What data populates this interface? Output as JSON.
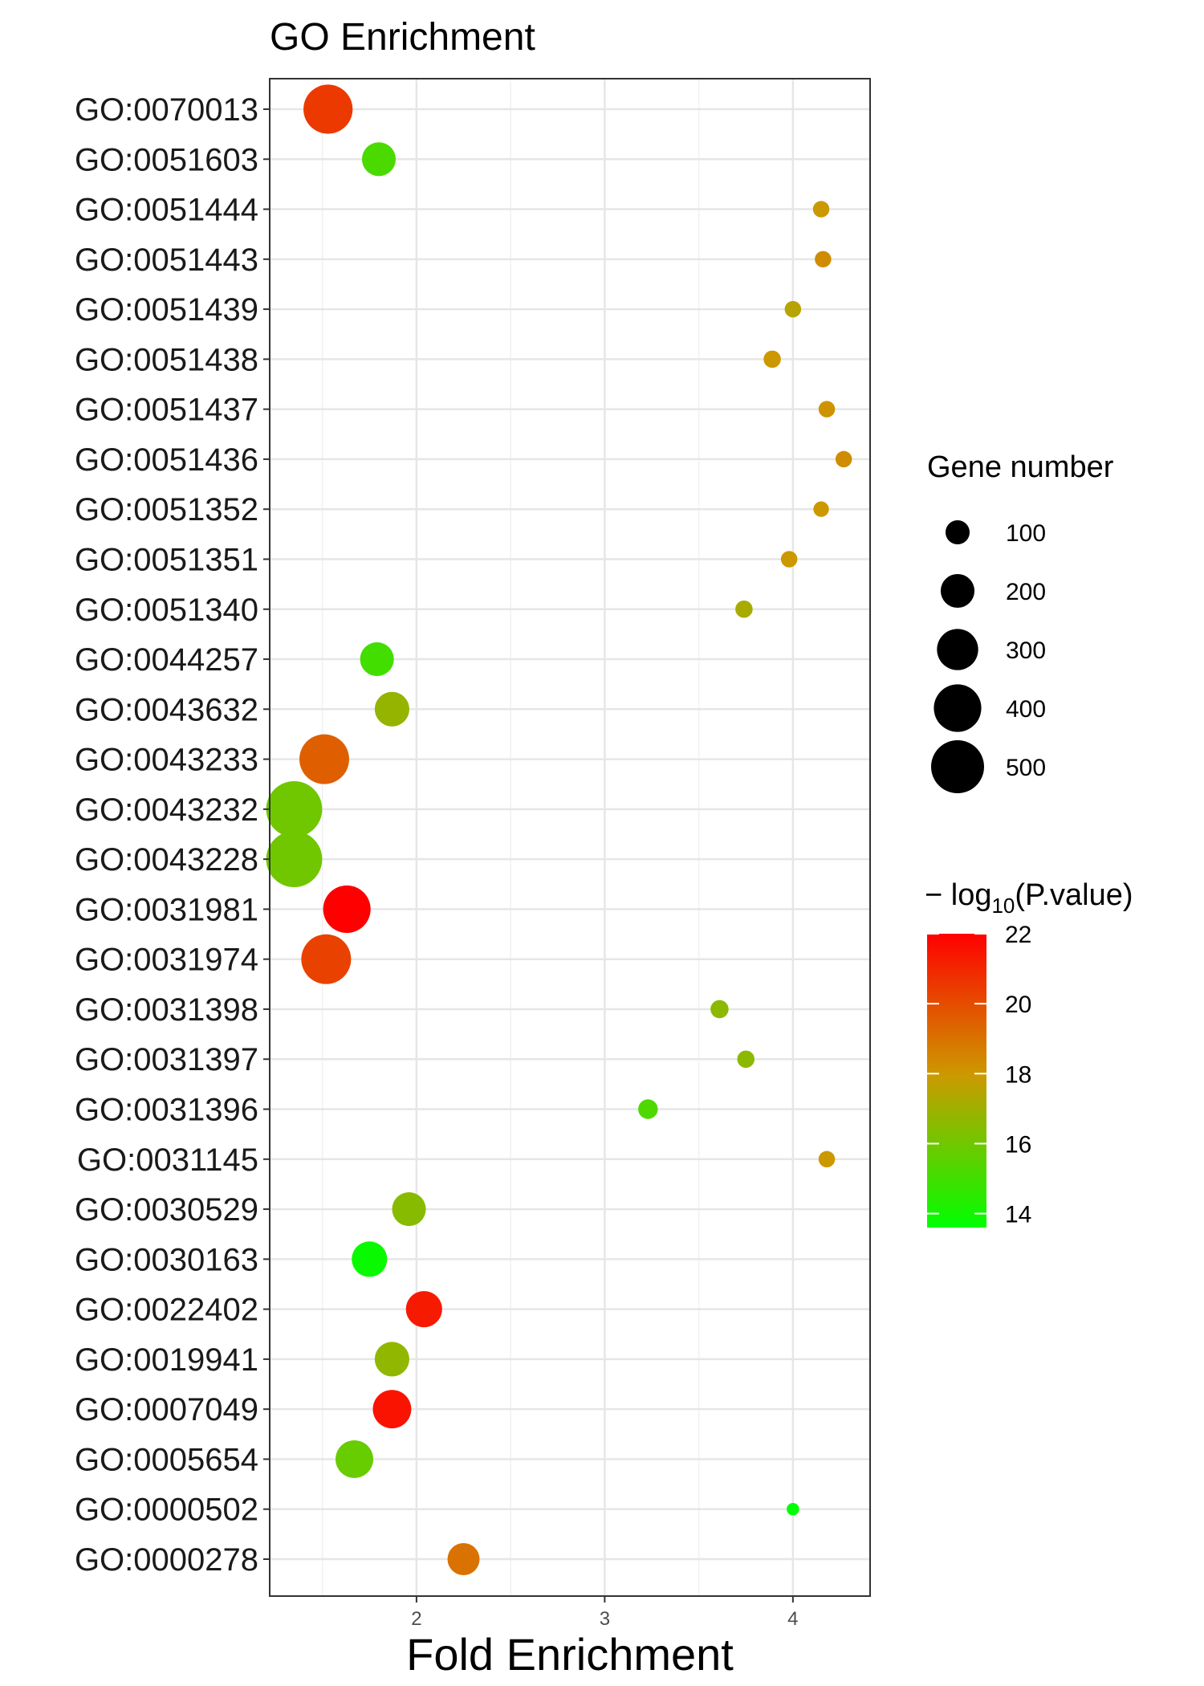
{
  "chart_data": {
    "type": "scatter",
    "title": "GO Enrichment",
    "xlabel": "Fold Enrichment",
    "ylabel": "",
    "xlim": [
      1.22,
      4.41
    ],
    "xticks": [
      2,
      3,
      4
    ],
    "grid": true,
    "categories": [
      "GO:0070013",
      "GO:0051603",
      "GO:0051444",
      "GO:0051443",
      "GO:0051439",
      "GO:0051438",
      "GO:0051437",
      "GO:0051436",
      "GO:0051352",
      "GO:0051351",
      "GO:0051340",
      "GO:0044257",
      "GO:0043632",
      "GO:0043233",
      "GO:0043232",
      "GO:0043228",
      "GO:0031981",
      "GO:0031974",
      "GO:0031398",
      "GO:0031397",
      "GO:0031396",
      "GO:0031145",
      "GO:0030529",
      "GO:0030163",
      "GO:0022402",
      "GO:0019941",
      "GO:0007049",
      "GO:0005654",
      "GO:0000502",
      "GO:0000278"
    ],
    "points": [
      {
        "term": "GO:0070013",
        "fold_enrichment": 1.53,
        "gene_number": 430,
        "neg_log10_p": 20.5
      },
      {
        "term": "GO:0051603",
        "fold_enrichment": 1.8,
        "gene_number": 200,
        "neg_log10_p": 15.2
      },
      {
        "term": "GO:0051444",
        "fold_enrichment": 4.15,
        "gene_number": 45,
        "neg_log10_p": 18.0
      },
      {
        "term": "GO:0051443",
        "fold_enrichment": 4.16,
        "gene_number": 45,
        "neg_log10_p": 18.3
      },
      {
        "term": "GO:0051439",
        "fold_enrichment": 4.0,
        "gene_number": 45,
        "neg_log10_p": 17.5
      },
      {
        "term": "GO:0051438",
        "fold_enrichment": 3.89,
        "gene_number": 50,
        "neg_log10_p": 18.0
      },
      {
        "term": "GO:0051437",
        "fold_enrichment": 4.18,
        "gene_number": 45,
        "neg_log10_p": 18.1
      },
      {
        "term": "GO:0051436",
        "fold_enrichment": 4.27,
        "gene_number": 45,
        "neg_log10_p": 18.3
      },
      {
        "term": "GO:0051352",
        "fold_enrichment": 4.15,
        "gene_number": 40,
        "neg_log10_p": 18.0
      },
      {
        "term": "GO:0051351",
        "fold_enrichment": 3.98,
        "gene_number": 45,
        "neg_log10_p": 18.0
      },
      {
        "term": "GO:0051340",
        "fold_enrichment": 3.74,
        "gene_number": 50,
        "neg_log10_p": 17.2
      },
      {
        "term": "GO:0044257",
        "fold_enrichment": 1.79,
        "gene_number": 200,
        "neg_log10_p": 15.0
      },
      {
        "term": "GO:0043632",
        "fold_enrichment": 1.87,
        "gene_number": 210,
        "neg_log10_p": 16.8
      },
      {
        "term": "GO:0043233",
        "fold_enrichment": 1.51,
        "gene_number": 440,
        "neg_log10_p": 19.5
      },
      {
        "term": "GO:0043232",
        "fold_enrichment": 1.35,
        "gene_number": 560,
        "neg_log10_p": 16.0
      },
      {
        "term": "GO:0043228",
        "fold_enrichment": 1.35,
        "gene_number": 560,
        "neg_log10_p": 16.0
      },
      {
        "term": "GO:0031981",
        "fold_enrichment": 1.63,
        "gene_number": 400,
        "neg_log10_p": 22.0
      },
      {
        "term": "GO:0031974",
        "fold_enrichment": 1.52,
        "gene_number": 440,
        "neg_log10_p": 20.3
      },
      {
        "term": "GO:0031398",
        "fold_enrichment": 3.61,
        "gene_number": 55,
        "neg_log10_p": 16.6
      },
      {
        "term": "GO:0031397",
        "fold_enrichment": 3.75,
        "gene_number": 50,
        "neg_log10_p": 16.6
      },
      {
        "term": "GO:0031396",
        "fold_enrichment": 3.23,
        "gene_number": 65,
        "neg_log10_p": 15.3
      },
      {
        "term": "GO:0031145",
        "fold_enrichment": 4.18,
        "gene_number": 45,
        "neg_log10_p": 18.0
      },
      {
        "term": "GO:0030529",
        "fold_enrichment": 1.96,
        "gene_number": 200,
        "neg_log10_p": 16.5
      },
      {
        "term": "GO:0030163",
        "fold_enrichment": 1.75,
        "gene_number": 220,
        "neg_log10_p": 13.8
      },
      {
        "term": "GO:0022402",
        "fold_enrichment": 2.04,
        "gene_number": 230,
        "neg_log10_p": 21.3
      },
      {
        "term": "GO:0019941",
        "fold_enrichment": 1.87,
        "gene_number": 210,
        "neg_log10_p": 16.7
      },
      {
        "term": "GO:0007049",
        "fold_enrichment": 1.87,
        "gene_number": 260,
        "neg_log10_p": 21.5
      },
      {
        "term": "GO:0005654",
        "fold_enrichment": 1.67,
        "gene_number": 250,
        "neg_log10_p": 15.8
      },
      {
        "term": "GO:0000502",
        "fold_enrichment": 4.0,
        "gene_number": 25,
        "neg_log10_p": 13.6
      },
      {
        "term": "GO:0000278",
        "fold_enrichment": 2.25,
        "gene_number": 180,
        "neg_log10_p": 19.0
      }
    ],
    "size_legend": {
      "title": "Gene number",
      "values": [
        100,
        200,
        300,
        400,
        500
      ]
    },
    "color_legend": {
      "title_prefix": "− log",
      "title_sub": "10",
      "title_suffix": "(P.value)",
      "ticks": [
        14,
        16,
        18,
        20,
        22
      ],
      "range": [
        13.6,
        22.0
      ],
      "low_color": "#00ff00",
      "mid_color": "#cc9900",
      "high_color": "#ff0000"
    }
  }
}
